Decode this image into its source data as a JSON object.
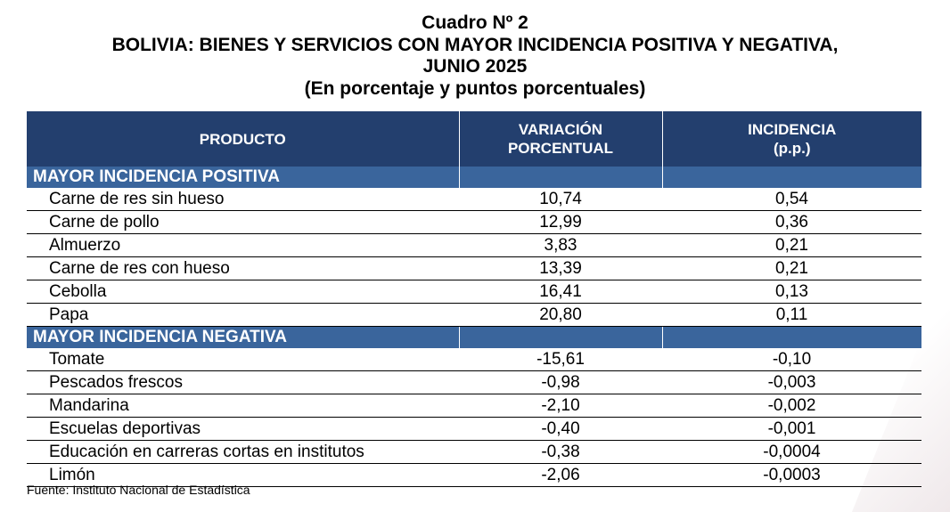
{
  "title": {
    "line1": "Cuadro Nº 2",
    "line2": "BOLIVIA: BIENES Y SERVICIOS CON MAYOR INCIDENCIA POSITIVA Y NEGATIVA,",
    "line3": "JUNIO 2025",
    "line4": "(En porcentaje y puntos porcentuales)"
  },
  "table": {
    "headers": {
      "producto": "PRODUCTO",
      "variacion_line1": "VARIACIÓN",
      "variacion_line2": "PORCENTUAL",
      "incidencia_line1": "INCIDENCIA",
      "incidencia_line2": "(p.p.)"
    },
    "positive_label": "MAYOR INCIDENCIA POSITIVA",
    "positive_rows": [
      {
        "producto": "Carne de res sin hueso",
        "variacion": "10,74",
        "incidencia": "0,54"
      },
      {
        "producto": "Carne de pollo",
        "variacion": "12,99",
        "incidencia": "0,36"
      },
      {
        "producto": "Almuerzo",
        "variacion": "3,83",
        "incidencia": "0,21"
      },
      {
        "producto": "Carne de res con hueso",
        "variacion": "13,39",
        "incidencia": "0,21"
      },
      {
        "producto": "Cebolla",
        "variacion": "16,41",
        "incidencia": "0,13"
      },
      {
        "producto": "Papa",
        "variacion": "20,80",
        "incidencia": "0,11"
      }
    ],
    "negative_label": "MAYOR INCIDENCIA NEGATIVA",
    "negative_rows": [
      {
        "producto": "Tomate",
        "variacion": "-15,61",
        "incidencia": "-0,10"
      },
      {
        "producto": "Pescados frescos",
        "variacion": "-0,98",
        "incidencia": "-0,003"
      },
      {
        "producto": "Mandarina",
        "variacion": "-2,10",
        "incidencia": "-0,002"
      },
      {
        "producto": "Escuelas deportivas",
        "variacion": "-0,40",
        "incidencia": "-0,001"
      },
      {
        "producto": "Educación en carreras cortas en institutos",
        "variacion": "-0,38",
        "incidencia": "-0,0004"
      },
      {
        "producto": "Limón",
        "variacion": "-2,06",
        "incidencia": "-0,0003"
      }
    ]
  },
  "source": "Fuente: Instituto Nacional de Estadística",
  "colors": {
    "header_bg": "#233f6e",
    "section_bg": "#3a659c"
  }
}
